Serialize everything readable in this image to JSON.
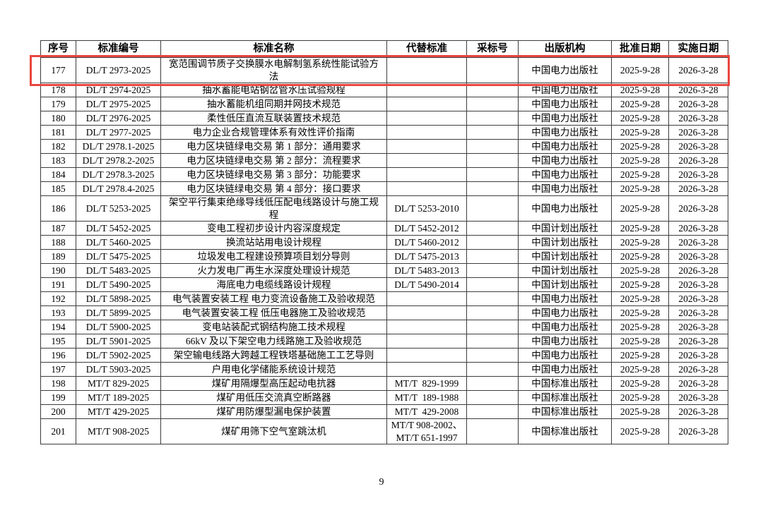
{
  "page_number": "9",
  "highlight": {
    "color": "#e9463f",
    "row_no": "177"
  },
  "table": {
    "columns": [
      {
        "key": "no",
        "label": "序号"
      },
      {
        "key": "code",
        "label": "标准编号"
      },
      {
        "key": "name",
        "label": "标准名称"
      },
      {
        "key": "replaces",
        "label": "代替标准"
      },
      {
        "key": "adoption",
        "label": "采标号"
      },
      {
        "key": "publisher",
        "label": "出版机构"
      },
      {
        "key": "approved",
        "label": "批准日期"
      },
      {
        "key": "effective",
        "label": "实施日期"
      }
    ],
    "rows": [
      {
        "no": "177",
        "code": "DL/T 2973-2025",
        "name": "宽范围调节质子交换膜水电解制氢系统性能试验方\n法",
        "replaces": "",
        "adoption": "",
        "publisher": "中国电力出版社",
        "approved": "2025-9-28",
        "effective": "2026-3-28"
      },
      {
        "no": "178",
        "code": "DL/T 2974-2025",
        "name": "抽水蓄能电站钢岔管水压试验规程",
        "replaces": "",
        "adoption": "",
        "publisher": "中国电力出版社",
        "approved": "2025-9-28",
        "effective": "2026-3-28"
      },
      {
        "no": "179",
        "code": "DL/T 2975-2025",
        "name": "抽水蓄能机组同期并网技术规范",
        "replaces": "",
        "adoption": "",
        "publisher": "中国电力出版社",
        "approved": "2025-9-28",
        "effective": "2026-3-28"
      },
      {
        "no": "180",
        "code": "DL/T 2976-2025",
        "name": "柔性低压直流互联装置技术规范",
        "replaces": "",
        "adoption": "",
        "publisher": "中国电力出版社",
        "approved": "2025-9-28",
        "effective": "2026-3-28"
      },
      {
        "no": "181",
        "code": "DL/T 2977-2025",
        "name": "电力企业合规管理体系有效性评价指南",
        "replaces": "",
        "adoption": "",
        "publisher": "中国电力出版社",
        "approved": "2025-9-28",
        "effective": "2026-3-28"
      },
      {
        "no": "182",
        "code": "DL/T 2978.1-2025",
        "name": "电力区块链绿电交易 第 1 部分：通用要求",
        "replaces": "",
        "adoption": "",
        "publisher": "中国电力出版社",
        "approved": "2025-9-28",
        "effective": "2026-3-28"
      },
      {
        "no": "183",
        "code": "DL/T 2978.2-2025",
        "name": "电力区块链绿电交易 第 2 部分：流程要求",
        "replaces": "",
        "adoption": "",
        "publisher": "中国电力出版社",
        "approved": "2025-9-28",
        "effective": "2026-3-28"
      },
      {
        "no": "184",
        "code": "DL/T 2978.3-2025",
        "name": "电力区块链绿电交易 第 3 部分：功能要求",
        "replaces": "",
        "adoption": "",
        "publisher": "中国电力出版社",
        "approved": "2025-9-28",
        "effective": "2026-3-28"
      },
      {
        "no": "185",
        "code": "DL/T 2978.4-2025",
        "name": "电力区块链绿电交易 第 4 部分：接口要求",
        "replaces": "",
        "adoption": "",
        "publisher": "中国电力出版社",
        "approved": "2025-9-28",
        "effective": "2026-3-28"
      },
      {
        "no": "186",
        "code": "DL/T 5253-2025",
        "name": "架空平行集束绝缘导线低压配电线路设计与施工规\n程",
        "replaces": "DL/T 5253-2010",
        "adoption": "",
        "publisher": "中国电力出版社",
        "approved": "2025-9-28",
        "effective": "2026-3-28"
      },
      {
        "no": "187",
        "code": "DL/T 5452-2025",
        "name": "变电工程初步设计内容深度规定",
        "replaces": "DL/T 5452-2012",
        "adoption": "",
        "publisher": "中国计划出版社",
        "approved": "2025-9-28",
        "effective": "2026-3-28"
      },
      {
        "no": "188",
        "code": "DL/T 5460-2025",
        "name": "换流站站用电设计规程",
        "replaces": "DL/T 5460-2012",
        "adoption": "",
        "publisher": "中国计划出版社",
        "approved": "2025-9-28",
        "effective": "2026-3-28"
      },
      {
        "no": "189",
        "code": "DL/T 5475-2025",
        "name": "垃圾发电工程建设预算项目划分导则",
        "replaces": "DL/T 5475-2013",
        "adoption": "",
        "publisher": "中国计划出版社",
        "approved": "2025-9-28",
        "effective": "2026-3-28"
      },
      {
        "no": "190",
        "code": "DL/T 5483-2025",
        "name": "火力发电厂再生水深度处理设计规范",
        "replaces": "DL/T 5483-2013",
        "adoption": "",
        "publisher": "中国计划出版社",
        "approved": "2025-9-28",
        "effective": "2026-3-28"
      },
      {
        "no": "191",
        "code": "DL/T 5490-2025",
        "name": "海底电力电缆线路设计规程",
        "replaces": "DL/T 5490-2014",
        "adoption": "",
        "publisher": "中国计划出版社",
        "approved": "2025-9-28",
        "effective": "2026-3-28"
      },
      {
        "no": "192",
        "code": "DL/T 5898-2025",
        "name": "电气装置安装工程 电力变流设备施工及验收规范",
        "replaces": "",
        "adoption": "",
        "publisher": "中国电力出版社",
        "approved": "2025-9-28",
        "effective": "2026-3-28"
      },
      {
        "no": "193",
        "code": "DL/T 5899-2025",
        "name": "电气装置安装工程 低压电器施工及验收规范",
        "replaces": "",
        "adoption": "",
        "publisher": "中国电力出版社",
        "approved": "2025-9-28",
        "effective": "2026-3-28"
      },
      {
        "no": "194",
        "code": "DL/T 5900-2025",
        "name": "变电站装配式钢结构施工技术规程",
        "replaces": "",
        "adoption": "",
        "publisher": "中国电力出版社",
        "approved": "2025-9-28",
        "effective": "2026-3-28"
      },
      {
        "no": "195",
        "code": "DL/T 5901-2025",
        "name": "66kV 及以下架空电力线路施工及验收规范",
        "replaces": "",
        "adoption": "",
        "publisher": "中国电力出版社",
        "approved": "2025-9-28",
        "effective": "2026-3-28"
      },
      {
        "no": "196",
        "code": "DL/T 5902-2025",
        "name": "架空输电线路大跨越工程铁塔基础施工工艺导则",
        "replaces": "",
        "adoption": "",
        "publisher": "中国电力出版社",
        "approved": "2025-9-28",
        "effective": "2026-3-28"
      },
      {
        "no": "197",
        "code": "DL/T 5903-2025",
        "name": "户用电化学储能系统设计规范",
        "replaces": "",
        "adoption": "",
        "publisher": "中国电力出版社",
        "approved": "2025-9-28",
        "effective": "2026-3-28"
      },
      {
        "no": "198",
        "code": "MT/T 829-2025",
        "name": "煤矿用隔爆型高压起动电抗器",
        "replaces": "MT/T  829-1999",
        "adoption": "",
        "publisher": "中国标准出版社",
        "approved": "2025-9-28",
        "effective": "2026-3-28"
      },
      {
        "no": "199",
        "code": "MT/T 189-2025",
        "name": "煤矿用低压交流真空断路器",
        "replaces": "MT/T  189-1988",
        "adoption": "",
        "publisher": "中国标准出版社",
        "approved": "2025-9-28",
        "effective": "2026-3-28"
      },
      {
        "no": "200",
        "code": "MT/T 429-2025",
        "name": "煤矿用防爆型漏电保护装置",
        "replaces": "MT/T  429-2008",
        "adoption": "",
        "publisher": "中国标准出版社",
        "approved": "2025-9-28",
        "effective": "2026-3-28"
      },
      {
        "no": "201",
        "code": "MT/T 908-2025",
        "name": "煤矿用筛下空气室跳汰机",
        "replaces": "MT/T 908-2002、\nMT/T 651-1997",
        "adoption": "",
        "publisher": "中国标准出版社",
        "approved": "2025-9-28",
        "effective": "2026-3-28"
      }
    ]
  }
}
